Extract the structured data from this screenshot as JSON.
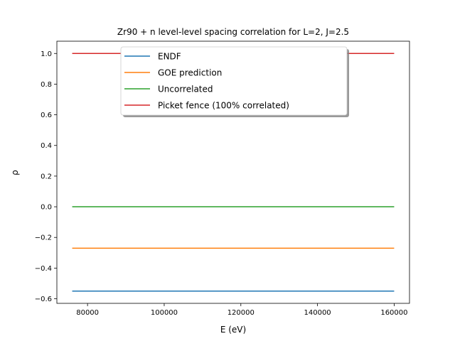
{
  "chart_data": {
    "type": "line",
    "title": "Zr90 + n  level-level spacing correlation for L=2, J=2.5",
    "xlabel": "E (eV)",
    "ylabel": "ρ",
    "xlim": [
      72000,
      164000
    ],
    "ylim": [
      -0.63,
      1.08
    ],
    "x_ticks": [
      80000,
      100000,
      120000,
      140000,
      160000
    ],
    "x_tick_labels": [
      "80000",
      "100000",
      "120000",
      "140000",
      "160000"
    ],
    "y_ticks": [
      -0.6,
      -0.4,
      -0.2,
      0.0,
      0.2,
      0.4,
      0.6,
      0.8,
      1.0
    ],
    "y_tick_labels": [
      "−0.6",
      "−0.4",
      "−0.2",
      "0.0",
      "0.2",
      "0.4",
      "0.6",
      "0.8",
      "1.0"
    ],
    "grid": false,
    "legend_position": "upper-center",
    "series": [
      {
        "name": "ENDF",
        "color": "#1f77b4",
        "x": [
          76000,
          160000
        ],
        "y": [
          -0.55,
          -0.55
        ]
      },
      {
        "name": "GOE prediction",
        "color": "#ff7f0e",
        "x": [
          76000,
          160000
        ],
        "y": [
          -0.27,
          -0.27
        ]
      },
      {
        "name": "Uncorrelated",
        "color": "#2ca02c",
        "x": [
          76000,
          160000
        ],
        "y": [
          0.0,
          0.0
        ]
      },
      {
        "name": "Picket fence (100% correlated)",
        "color": "#d62728",
        "x": [
          76000,
          160000
        ],
        "y": [
          1.0,
          1.0
        ]
      }
    ]
  }
}
